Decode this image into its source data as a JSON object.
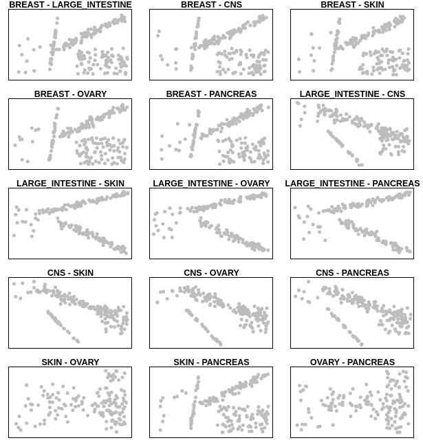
{
  "colors": {
    "point": "#bdbdbd",
    "frame": "#000000",
    "title": "#000000",
    "background": "#ffffff"
  },
  "chart_data": [
    {
      "type": "scatter",
      "title": "BREAST - LARGE_INTESTINE",
      "layout_pattern": "A",
      "seed": 11
    },
    {
      "type": "scatter",
      "title": "BREAST - CNS",
      "layout_pattern": "A",
      "seed": 23
    },
    {
      "type": "scatter",
      "title": "BREAST - SKIN",
      "layout_pattern": "A",
      "seed": 37
    },
    {
      "type": "scatter",
      "title": "BREAST - OVARY",
      "layout_pattern": "A",
      "seed": 41
    },
    {
      "type": "scatter",
      "title": "BREAST - PANCREAS",
      "layout_pattern": "A",
      "seed": 53
    },
    {
      "type": "scatter",
      "title": "LARGE_INTESTINE - CNS",
      "layout_pattern": "B",
      "seed": 67
    },
    {
      "type": "scatter",
      "title": "LARGE_INTESTINE - SKIN",
      "layout_pattern": "C",
      "seed": 71
    },
    {
      "type": "scatter",
      "title": "LARGE_INTESTINE - OVARY",
      "layout_pattern": "C",
      "seed": 83
    },
    {
      "type": "scatter",
      "title": "LARGE_INTESTINE - PANCREAS",
      "layout_pattern": "C",
      "seed": 97
    },
    {
      "type": "scatter",
      "title": "CNS - SKIN",
      "layout_pattern": "B",
      "seed": 101
    },
    {
      "type": "scatter",
      "title": "CNS - OVARY",
      "layout_pattern": "B",
      "seed": 113
    },
    {
      "type": "scatter",
      "title": "CNS - PANCREAS",
      "layout_pattern": "B",
      "seed": 127
    },
    {
      "type": "scatter",
      "title": "SKIN - OVARY",
      "layout_pattern": "D",
      "seed": 131
    },
    {
      "type": "scatter",
      "title": "SKIN - PANCREAS",
      "layout_pattern": "A",
      "seed": 149
    },
    {
      "type": "scatter",
      "title": "OVARY - PANCREAS",
      "layout_pattern": "D",
      "seed": 157
    }
  ]
}
